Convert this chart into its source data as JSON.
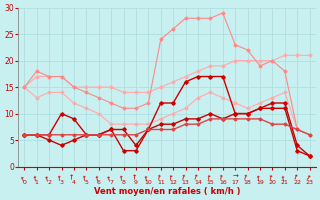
{
  "background_color": "#c8f0f0",
  "grid_color": "#b0dede",
  "xlabel": "Vent moyen/en rafales ( km/h )",
  "xlabel_color": "#cc0000",
  "tick_color": "#cc0000",
  "xlim": [
    -0.5,
    23.5
  ],
  "ylim": [
    0,
    30
  ],
  "yticks": [
    0,
    5,
    10,
    15,
    20,
    25,
    30
  ],
  "xticks": [
    0,
    1,
    2,
    3,
    4,
    5,
    6,
    7,
    8,
    9,
    10,
    11,
    12,
    13,
    14,
    15,
    16,
    17,
    18,
    19,
    20,
    21,
    22,
    23
  ],
  "series": [
    {
      "x": [
        0,
        1,
        2,
        3,
        4,
        5,
        6,
        7,
        8,
        9,
        10,
        11,
        12,
        13,
        14,
        15,
        16,
        17,
        18,
        19,
        20,
        21,
        22,
        23
      ],
      "y": [
        15,
        17,
        17,
        17,
        15,
        15,
        15,
        15,
        14,
        14,
        14,
        15,
        16,
        17,
        18,
        19,
        19,
        20,
        20,
        20,
        20,
        21,
        21,
        21
      ],
      "color": "#ffaaaa",
      "lw": 0.8,
      "marker": "D",
      "ms": 1.5
    },
    {
      "x": [
        0,
        1,
        2,
        3,
        4,
        5,
        6,
        7,
        8,
        9,
        10,
        11,
        12,
        13,
        14,
        15,
        16,
        17,
        18,
        19,
        20,
        21,
        22,
        23
      ],
      "y": [
        15,
        13,
        14,
        14,
        12,
        11,
        10,
        8,
        8,
        8,
        8,
        9,
        10,
        11,
        13,
        14,
        13,
        12,
        11,
        12,
        13,
        14,
        7,
        6
      ],
      "color": "#ffaaaa",
      "lw": 0.8,
      "marker": "D",
      "ms": 1.5
    },
    {
      "x": [
        0,
        1,
        2,
        3,
        4,
        5,
        6,
        7,
        8,
        9,
        10,
        11,
        12,
        13,
        14,
        15,
        16,
        17,
        18,
        19,
        20,
        21,
        22,
        23
      ],
      "y": [
        15,
        18,
        17,
        17,
        15,
        14,
        13,
        12,
        11,
        11,
        12,
        24,
        26,
        28,
        28,
        28,
        29,
        23,
        22,
        19,
        20,
        18,
        7,
        6
      ],
      "color": "#ff8888",
      "lw": 0.8,
      "marker": "D",
      "ms": 1.5
    },
    {
      "x": [
        0,
        1,
        2,
        3,
        4,
        5,
        6,
        7,
        8,
        9,
        10,
        11,
        12,
        13,
        14,
        15,
        16,
        17,
        18,
        19,
        20,
        21,
        22,
        23
      ],
      "y": [
        6,
        6,
        6,
        10,
        9,
        6,
        6,
        7,
        7,
        4,
        7,
        12,
        12,
        16,
        17,
        17,
        17,
        10,
        10,
        11,
        12,
        12,
        4,
        2
      ],
      "color": "#cc0000",
      "lw": 1.0,
      "marker": "D",
      "ms": 1.8
    },
    {
      "x": [
        0,
        1,
        2,
        3,
        4,
        5,
        6,
        7,
        8,
        9,
        10,
        11,
        12,
        13,
        14,
        15,
        16,
        17,
        18,
        19,
        20,
        21,
        22,
        23
      ],
      "y": [
        6,
        6,
        5,
        4,
        5,
        6,
        6,
        7,
        3,
        3,
        7,
        8,
        8,
        9,
        9,
        10,
        9,
        10,
        10,
        11,
        11,
        11,
        3,
        2
      ],
      "color": "#cc0000",
      "lw": 1.0,
      "marker": "D",
      "ms": 1.8
    },
    {
      "x": [
        0,
        1,
        2,
        3,
        4,
        5,
        6,
        7,
        8,
        9,
        10,
        11,
        12,
        13,
        14,
        15,
        16,
        17,
        18,
        19,
        20,
        21,
        22,
        23
      ],
      "y": [
        6,
        6,
        6,
        6,
        6,
        6,
        6,
        6,
        6,
        6,
        7,
        7,
        7,
        8,
        8,
        9,
        9,
        9,
        9,
        9,
        8,
        8,
        7,
        6
      ],
      "color": "#dd4444",
      "lw": 1.0,
      "marker": "D",
      "ms": 1.5
    }
  ],
  "wind_arrows": "←",
  "arrow_color": "#cc0000",
  "arrow_rotations": [
    200,
    190,
    195,
    185,
    180,
    185,
    190,
    195,
    185,
    180,
    190,
    170,
    175,
    165,
    160,
    175,
    170,
    90,
    165,
    185,
    175,
    190,
    160,
    150
  ]
}
